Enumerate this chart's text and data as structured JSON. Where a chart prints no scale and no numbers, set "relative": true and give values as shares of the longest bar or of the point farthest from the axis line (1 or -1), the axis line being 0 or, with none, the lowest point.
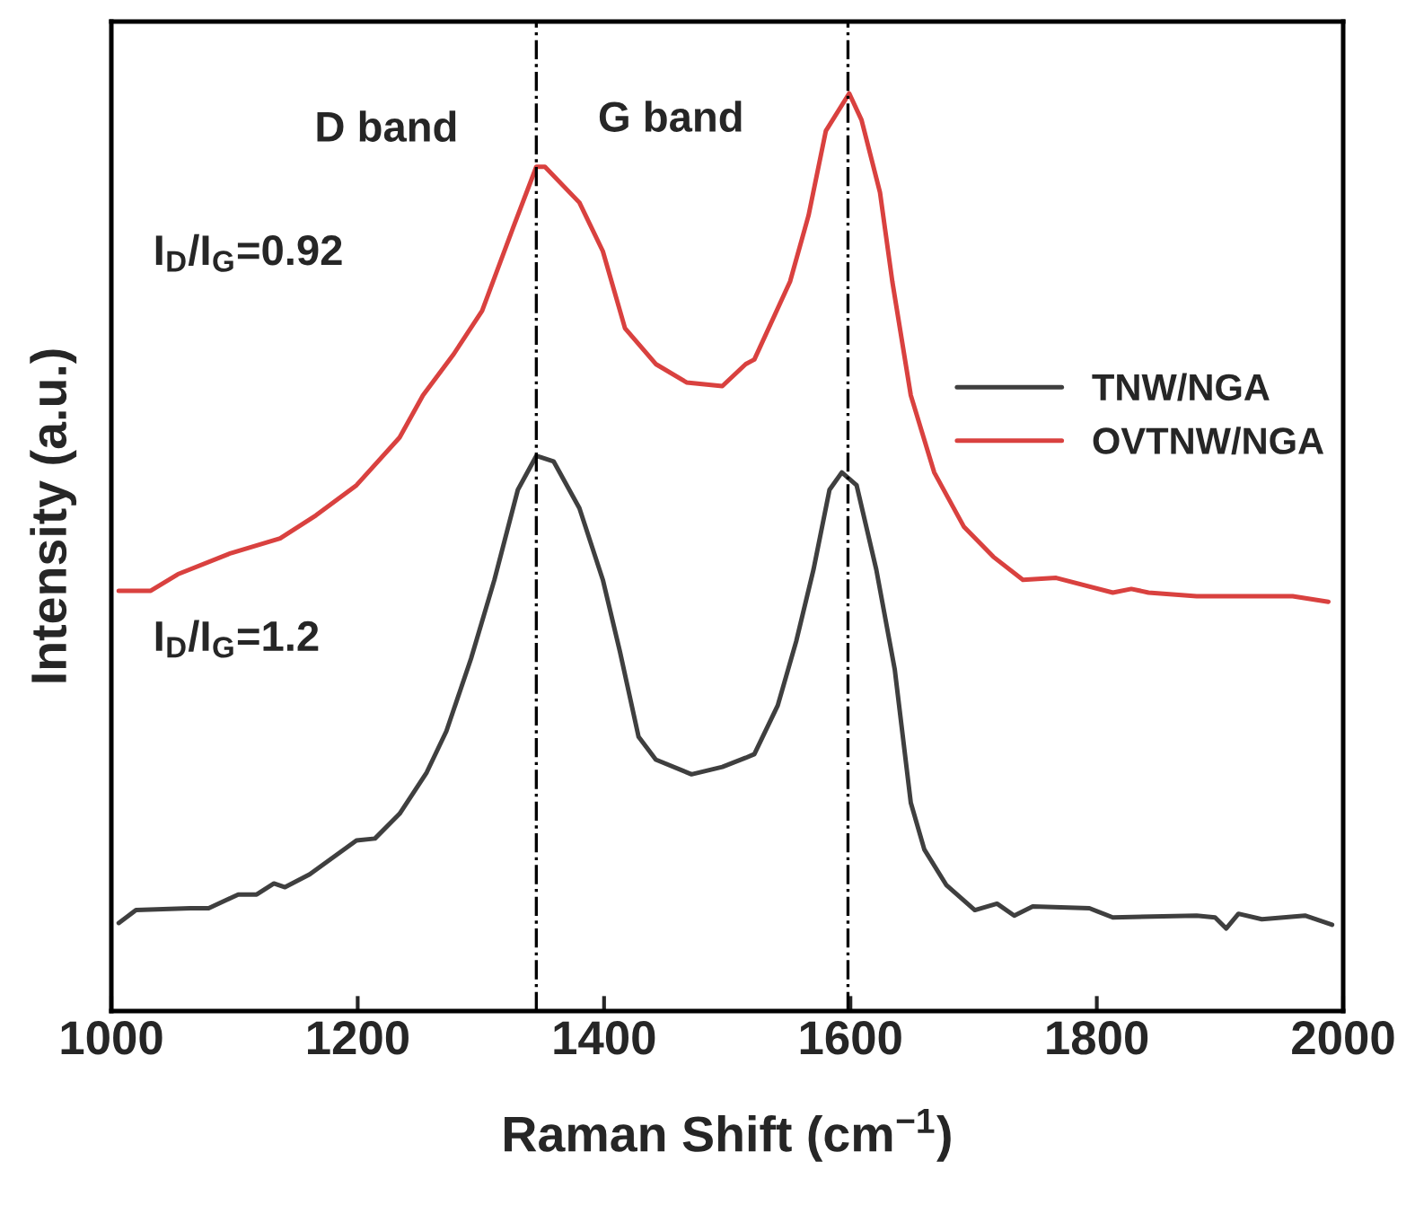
{
  "chart_data": {
    "type": "line",
    "relative": true,
    "xlabel": "Raman Shift (cm$^{−1}$)",
    "ylabel": "Intensity (a.u.)",
    "xlim": [
      1000,
      2000
    ],
    "xticks": [
      1000,
      1200,
      1400,
      1600,
      1800,
      2000
    ],
    "grid": false,
    "legend": "right",
    "marker": "none",
    "line_style": "solid",
    "series": [
      {
        "name": "TNW/NGA",
        "color": "#3f3f3f",
        "x": [
          1006,
          1020,
          1064,
          1079,
          1103,
          1118,
          1132,
          1141,
          1161,
          1199,
          1214,
          1234,
          1256,
          1272,
          1292,
          1311,
          1330,
          1345,
          1359,
          1380,
          1399,
          1413,
          1428,
          1442,
          1471,
          1496,
          1515,
          1522,
          1541,
          1556,
          1570,
          1583,
          1593,
          1605,
          1621,
          1636,
          1649,
          1660,
          1678,
          1701,
          1719,
          1733,
          1748,
          1794,
          1813,
          1881,
          1896,
          1905,
          1915,
          1934,
          1969,
          1991
        ],
        "values": [
          0.096,
          0.11,
          0.112,
          0.112,
          0.127,
          0.127,
          0.139,
          0.135,
          0.149,
          0.186,
          0.188,
          0.215,
          0.26,
          0.305,
          0.384,
          0.47,
          0.568,
          0.605,
          0.599,
          0.548,
          0.47,
          0.391,
          0.299,
          0.274,
          0.258,
          0.266,
          0.276,
          0.28,
          0.333,
          0.403,
          0.481,
          0.568,
          0.587,
          0.573,
          0.481,
          0.372,
          0.227,
          0.176,
          0.137,
          0.11,
          0.117,
          0.104,
          0.114,
          0.112,
          0.102,
          0.104,
          0.102,
          0.09,
          0.106,
          0.1,
          0.104,
          0.094
        ]
      },
      {
        "name": "OVTNW/NGA",
        "color": "#d9413f",
        "x": [
          1006,
          1032,
          1054,
          1097,
          1137,
          1166,
          1199,
          1234,
          1253,
          1278,
          1301,
          1326,
          1345,
          1352,
          1380,
          1399,
          1417,
          1442,
          1467,
          1496,
          1515,
          1522,
          1551,
          1566,
          1580,
          1599,
          1609,
          1624,
          1634,
          1649,
          1668,
          1692,
          1716,
          1740,
          1767,
          1813,
          1828,
          1842,
          1881,
          1959,
          1988
        ],
        "values": [
          0.458,
          0.458,
          0.476,
          0.499,
          0.515,
          0.54,
          0.573,
          0.625,
          0.671,
          0.716,
          0.763,
          0.853,
          0.92,
          0.92,
          0.881,
          0.828,
          0.744,
          0.705,
          0.685,
          0.681,
          0.705,
          0.71,
          0.795,
          0.867,
          0.959,
          1.0,
          0.971,
          0.892,
          0.795,
          0.671,
          0.587,
          0.528,
          0.495,
          0.47,
          0.472,
          0.456,
          0.46,
          0.456,
          0.452,
          0.452,
          0.446
        ]
      }
    ],
    "ref_lines": [
      {
        "axis": "x",
        "value": 1345,
        "color": "#000000",
        "line_style": "dashdot"
      },
      {
        "axis": "x",
        "value": 1598,
        "color": "#000000",
        "line_style": "dashdot"
      }
    ],
    "annotations": [
      "D band",
      "G band",
      "I$_{D}$/I$_{G}$=0.92",
      "I$_{D}$/I$_{G}$=1.2"
    ]
  }
}
